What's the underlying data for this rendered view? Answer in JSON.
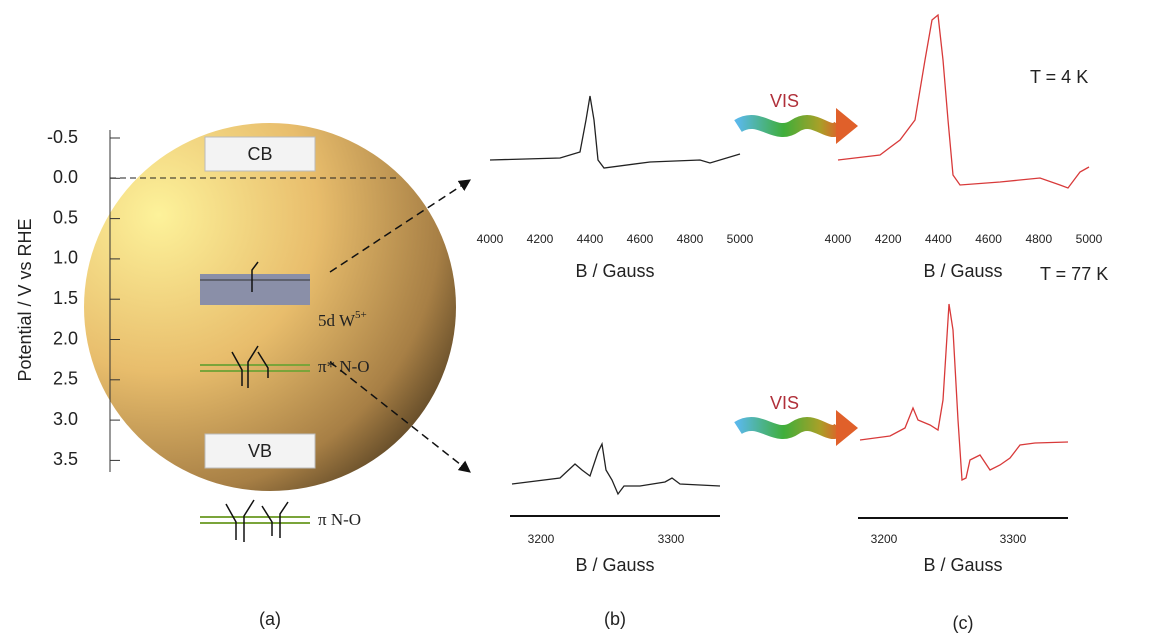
{
  "panel_a": {
    "axis_label": "Potential / V vs RHE",
    "ticks": [
      "-0.5",
      "0.0",
      "0.5",
      "1.0",
      "1.5",
      "2.0",
      "2.5",
      "3.0",
      "3.5"
    ],
    "cb": "CB",
    "vb": "VB",
    "w_level": "5d W",
    "w_charge": "5+",
    "pi_star": "π* N-O",
    "pi": "π N-O",
    "label": "(a)"
  },
  "panel_b": {
    "top_ticks": [
      "4000",
      "4200",
      "4400",
      "4600",
      "4800",
      "5000"
    ],
    "top_xlabel": "B / Gauss",
    "bottom_ticks": [
      "3200",
      "3300"
    ],
    "bottom_xlabel": "B / Gauss",
    "label": "(b)"
  },
  "panel_c": {
    "top_temp": "T = 4 K",
    "bottom_temp": "T = 77 K",
    "top_vis": "VIS",
    "bottom_vis": "VIS",
    "top_ticks": [
      "4000",
      "4200",
      "4400",
      "4600",
      "4800",
      "5000"
    ],
    "top_xlabel": "B / Gauss",
    "bottom_ticks": [
      "3200",
      "3300"
    ],
    "bottom_xlabel": "B / Gauss",
    "label": "(c)"
  }
}
